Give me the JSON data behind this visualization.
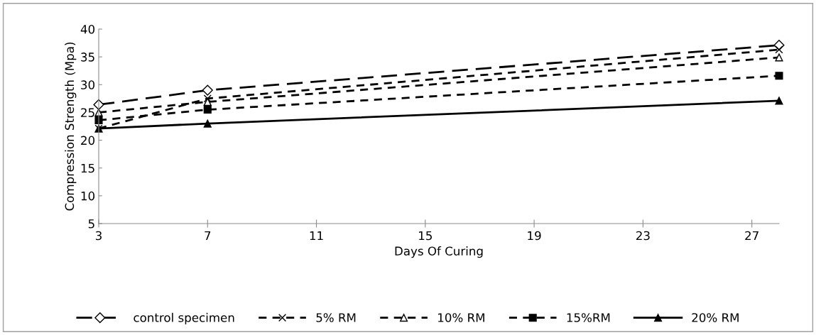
{
  "chart_data": {
    "type": "line",
    "xlabel": "Days Of Curing",
    "ylabel": "Compression Strength (Mpa)",
    "x": [
      3,
      7,
      28
    ],
    "xlim": [
      3,
      28
    ],
    "xticks": [
      3,
      7,
      11,
      15,
      19,
      23,
      27
    ],
    "ylim": [
      5,
      40
    ],
    "yticks": [
      5,
      10,
      15,
      20,
      25,
      30,
      35,
      40
    ],
    "grid": false,
    "legend": "bottom",
    "series": [
      {
        "name": "control specimen",
        "color": "#000000",
        "marker": "diamond",
        "line_style": "longdash",
        "values": [
          26.4,
          29.0,
          37.1
        ]
      },
      {
        "name": "5% RM",
        "color": "#000000",
        "marker": "cross",
        "line_style": "dashed",
        "values": [
          22.1,
          27.5,
          36.3
        ]
      },
      {
        "name": "10% RM",
        "color": "#000000",
        "marker": "triangle_open",
        "line_style": "dashed",
        "values": [
          25.0,
          26.9,
          34.9
        ]
      },
      {
        "name": "15%RM",
        "color": "#000000",
        "marker": "square",
        "line_style": "dashed",
        "values": [
          23.6,
          25.5,
          31.6
        ]
      },
      {
        "name": "20% RM",
        "color": "#000000",
        "marker": "triangle",
        "line_style": "solid",
        "values": [
          22.1,
          23.0,
          27.1
        ]
      }
    ]
  }
}
